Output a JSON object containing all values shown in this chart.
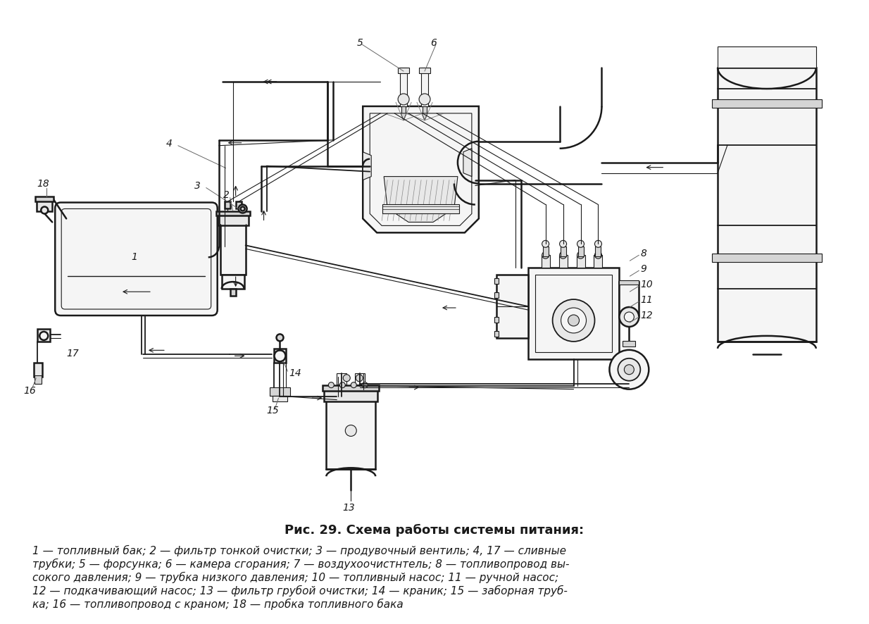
{
  "title": "Рис. 29. Схема работы системы питания:",
  "caption_lines": [
    "1 — топливный бак; 2 — фильтр тонкой очистки; 3 — продувочный вентиль; 4, 17 — сливные",
    "трубки; 5 — форсунка; 6 — камера сгорания; 7 — воздухоочистнтель; 8 — топливопровод вы-",
    "сокого давления; 9 — трубка низкого давления; 10 — топливный насос; 11 — ручной насос;",
    "12 — подкачивающий насос; 13 — фильтр грубой очистки; 14 — краник; 15 — заборная труб-",
    "ка; 16 — топливопровод с краном; 18 — пробка топливного бака"
  ],
  "bg_color": "#ffffff",
  "lc": "#1a1a1a",
  "lw_main": 1.8,
  "lw_med": 1.3,
  "lw_thin": 0.8,
  "lw_pipe": 2.0,
  "fill_light": "#f5f5f5",
  "fill_mid": "#e8e8e8",
  "fill_dark": "#d5d5d5",
  "title_fontsize": 13,
  "caption_fontsize": 11,
  "label_fontsize": 10,
  "fig_w": 12.34,
  "fig_h": 8.86,
  "dpi": 100
}
